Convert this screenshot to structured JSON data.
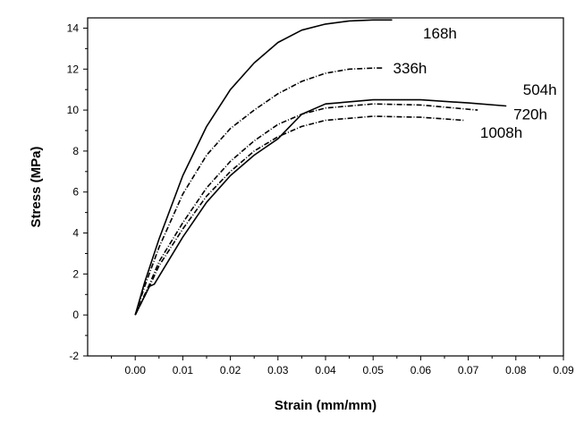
{
  "chart_data": {
    "type": "line",
    "title": "",
    "xlabel": "Strain (mm/mm)",
    "ylabel": "Stress (MPa)",
    "xlim": [
      -0.01,
      0.09
    ],
    "ylim": [
      -2,
      14.5
    ],
    "xticks": [
      0.0,
      0.01,
      0.02,
      0.03,
      0.04,
      0.05,
      0.06,
      0.07,
      0.08,
      0.09
    ],
    "xtick_labels": [
      "0.00",
      "0.01",
      "0.02",
      "0.03",
      "0.04",
      "0.05",
      "0.06",
      "0.07",
      "0.08",
      "0.09"
    ],
    "yticks": [
      -2,
      0,
      2,
      4,
      6,
      8,
      10,
      12,
      14
    ],
    "ytick_labels": [
      "-2",
      "0",
      "2",
      "4",
      "6",
      "8",
      "10",
      "12",
      "14"
    ],
    "grid": false,
    "legend": "none (labels placed at curve ends)",
    "series": [
      {
        "name": "168h",
        "dash": "solid",
        "x": [
          0.0,
          0.002,
          0.005,
          0.01,
          0.015,
          0.02,
          0.025,
          0.03,
          0.035,
          0.04,
          0.045,
          0.05,
          0.054
        ],
        "y": [
          0.0,
          1.6,
          3.7,
          6.8,
          9.2,
          11.0,
          12.3,
          13.3,
          13.9,
          14.2,
          14.35,
          14.4,
          14.4
        ]
      },
      {
        "name": "336h",
        "dash": "dashdot",
        "x": [
          0.0,
          0.002,
          0.005,
          0.01,
          0.015,
          0.02,
          0.025,
          0.03,
          0.035,
          0.04,
          0.045,
          0.05,
          0.052
        ],
        "y": [
          0.0,
          1.4,
          3.3,
          5.9,
          7.8,
          9.1,
          10.0,
          10.8,
          11.4,
          11.8,
          12.0,
          12.05,
          12.05
        ]
      },
      {
        "name": "504h",
        "dash": "solid",
        "x": [
          0.0,
          0.003,
          0.004,
          0.01,
          0.015,
          0.02,
          0.025,
          0.03,
          0.035,
          0.04,
          0.05,
          0.06,
          0.07,
          0.078
        ],
        "y": [
          0.0,
          1.4,
          1.5,
          3.8,
          5.5,
          6.8,
          7.8,
          8.6,
          9.8,
          10.3,
          10.5,
          10.5,
          10.35,
          10.2
        ]
      },
      {
        "name": "720h",
        "dash": "dashdot",
        "x": [
          0.0,
          0.003,
          0.005,
          0.01,
          0.015,
          0.02,
          0.025,
          0.03,
          0.035,
          0.04,
          0.05,
          0.06,
          0.072
        ],
        "y": [
          0.0,
          1.5,
          2.6,
          4.5,
          6.2,
          7.5,
          8.5,
          9.3,
          9.8,
          10.1,
          10.3,
          10.25,
          10.0
        ]
      },
      {
        "name": "1008h",
        "dash": "dashdot",
        "x": [
          0.0,
          0.003,
          0.005,
          0.01,
          0.015,
          0.02,
          0.025,
          0.03,
          0.035,
          0.04,
          0.05,
          0.06,
          0.069
        ],
        "y": [
          0.0,
          1.4,
          2.4,
          4.2,
          5.8,
          7.0,
          8.0,
          8.7,
          9.2,
          9.5,
          9.7,
          9.65,
          9.5
        ]
      }
    ],
    "annotations": [
      {
        "text": "168h",
        "x": 0.0605,
        "y": 13.5
      },
      {
        "text": "336h",
        "x": 0.0542,
        "y": 11.8
      },
      {
        "text": "504h",
        "x": 0.0815,
        "y": 10.75
      },
      {
        "text": "720h",
        "x": 0.0795,
        "y": 9.55
      },
      {
        "text": "1008h",
        "x": 0.0725,
        "y": 8.65
      }
    ],
    "colors": {
      "line": "#000000",
      "axis": "#000000",
      "background": "#ffffff"
    }
  }
}
